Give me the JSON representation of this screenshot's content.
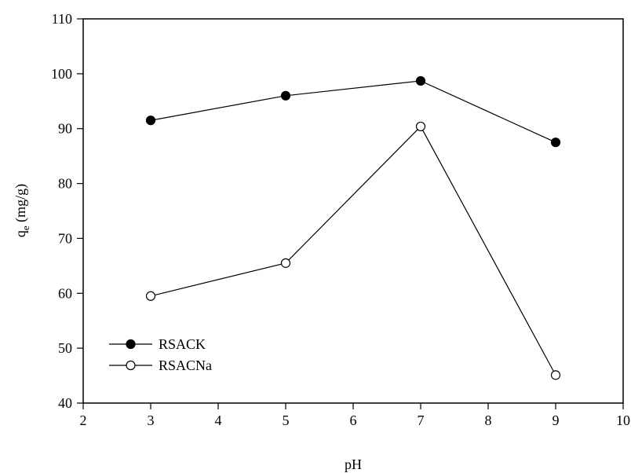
{
  "chart_data": {
    "type": "line",
    "xlabel": "pH",
    "ylabel_main": "q",
    "ylabel_sub": "e",
    "ylabel_unit": " (mg/g)",
    "xlim": [
      2,
      10
    ],
    "ylim": [
      40,
      110
    ],
    "xticks": [
      2,
      3,
      4,
      5,
      6,
      7,
      8,
      9,
      10
    ],
    "yticks": [
      40,
      50,
      60,
      70,
      80,
      90,
      100,
      110
    ],
    "grid": false,
    "legend_position": "bottom-left",
    "series": [
      {
        "name": "RSACK",
        "marker": "filled-circle",
        "color": "#000000",
        "x": [
          3,
          5,
          7,
          9
        ],
        "y": [
          91.5,
          96.0,
          98.7,
          87.5
        ]
      },
      {
        "name": "RSACNa",
        "marker": "open-circle",
        "color": "#000000",
        "x": [
          3,
          5,
          7,
          9
        ],
        "y": [
          59.5,
          65.5,
          90.4,
          45.1
        ]
      }
    ]
  }
}
